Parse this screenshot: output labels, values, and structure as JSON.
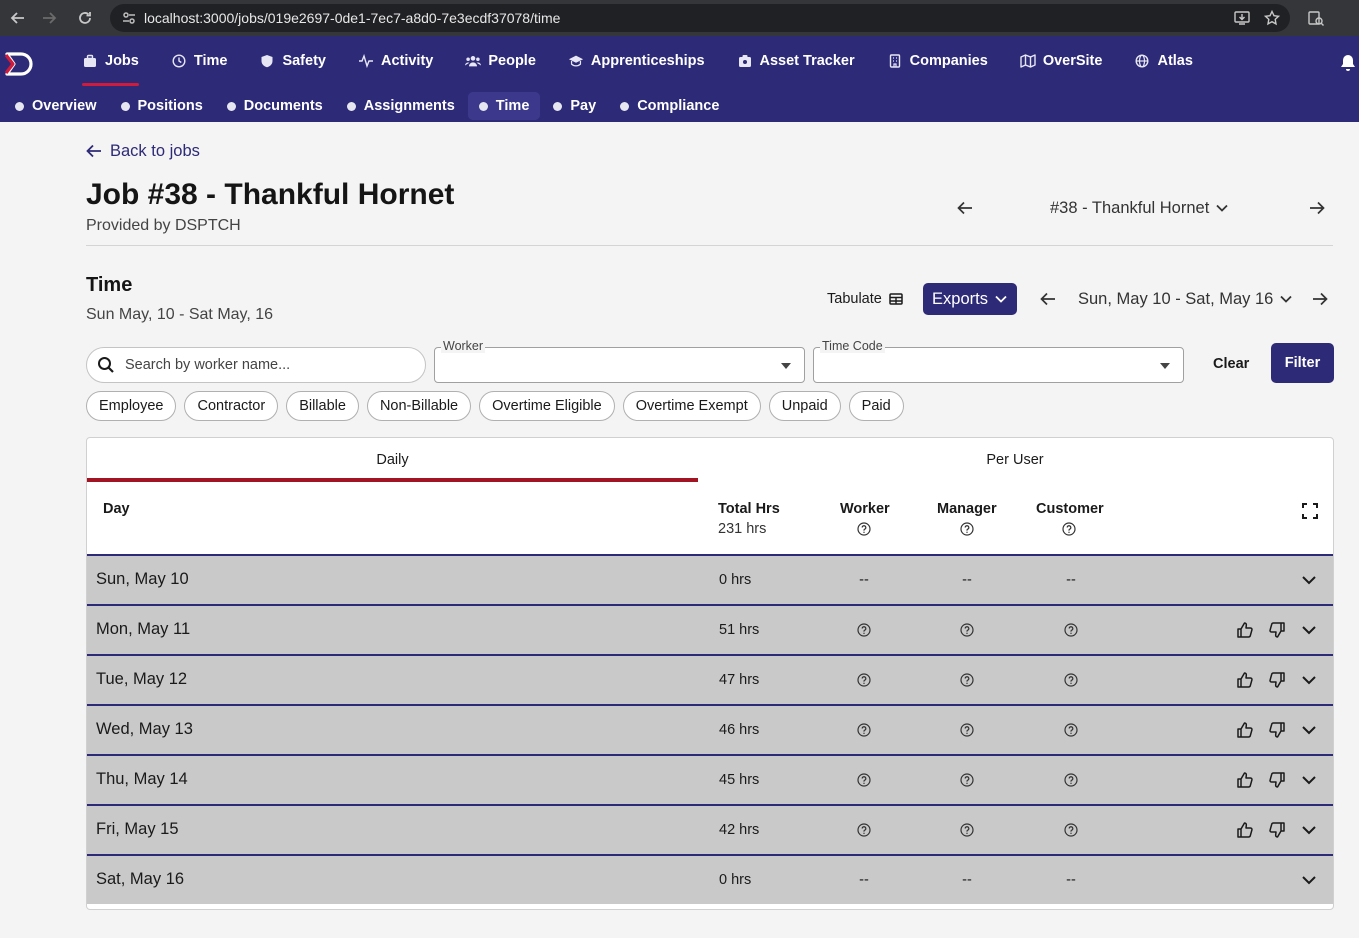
{
  "browser": {
    "url": "localhost:3000/jobs/019e2697-0de1-7ec7-a8d0-7e3ecdf37078/time"
  },
  "main_nav": [
    {
      "label": "Jobs",
      "icon": "briefcase-icon",
      "active": true
    },
    {
      "label": "Time",
      "icon": "clock-icon",
      "active": false
    },
    {
      "label": "Safety",
      "icon": "shield-icon",
      "active": false
    },
    {
      "label": "Activity",
      "icon": "activity-icon",
      "active": false
    },
    {
      "label": "People",
      "icon": "people-icon",
      "active": false
    },
    {
      "label": "Apprenticeships",
      "icon": "graduation-cap-icon",
      "active": false
    },
    {
      "label": "Asset Tracker",
      "icon": "asset-tag-icon",
      "active": false
    },
    {
      "label": "Companies",
      "icon": "building-icon",
      "active": false
    },
    {
      "label": "OverSite",
      "icon": "map-icon",
      "active": false
    },
    {
      "label": "Atlas",
      "icon": "globe-icon",
      "active": false
    }
  ],
  "sub_nav": [
    {
      "label": "Overview",
      "active": false
    },
    {
      "label": "Positions",
      "active": false
    },
    {
      "label": "Documents",
      "active": false
    },
    {
      "label": "Assignments",
      "active": false
    },
    {
      "label": "Time",
      "active": true
    },
    {
      "label": "Pay",
      "active": false
    },
    {
      "label": "Compliance",
      "active": false
    }
  ],
  "page": {
    "back_label": "Back to jobs",
    "title": "Job #38 - Thankful Hornet",
    "provider": "Provided by DSPTCH",
    "job_selector": "#38 - Thankful Hornet"
  },
  "time_section": {
    "title": "Time",
    "date_range": "Sun May, 10 - Sat May, 16",
    "tabulate_label": "Tabulate",
    "exports_label": "Exports",
    "week_selector": "Sun, May 10 - Sat, May 16"
  },
  "filters": {
    "search_placeholder": "Search by worker name...",
    "worker_label": "Worker",
    "time_code_label": "Time Code",
    "clear_label": "Clear",
    "filter_label": "Filter",
    "chips": [
      "Employee",
      "Contractor",
      "Billable",
      "Non-Billable",
      "Overtime Eligible",
      "Overtime Exempt",
      "Unpaid",
      "Paid"
    ]
  },
  "table": {
    "tabs": [
      "Daily",
      "Per User"
    ],
    "active_tab": "Daily",
    "headers": {
      "day": "Day",
      "total_hrs": "Total Hrs",
      "total_hrs_value": "231 hrs",
      "worker": "Worker",
      "manager": "Manager",
      "customer": "Customer"
    },
    "rows": [
      {
        "day": "Sun, May 10",
        "hrs": "0 hrs",
        "worker": "--",
        "manager": "--",
        "customer": "--",
        "actions": false
      },
      {
        "day": "Mon, May 11",
        "hrs": "51 hrs",
        "worker": "?",
        "manager": "?",
        "customer": "?",
        "actions": true
      },
      {
        "day": "Tue, May 12",
        "hrs": "47 hrs",
        "worker": "?",
        "manager": "?",
        "customer": "?",
        "actions": true
      },
      {
        "day": "Wed, May 13",
        "hrs": "46 hrs",
        "worker": "?",
        "manager": "?",
        "customer": "?",
        "actions": true
      },
      {
        "day": "Thu, May 14",
        "hrs": "45 hrs",
        "worker": "?",
        "manager": "?",
        "customer": "?",
        "actions": true
      },
      {
        "day": "Fri, May 15",
        "hrs": "42 hrs",
        "worker": "?",
        "manager": "?",
        "customer": "?",
        "actions": true
      },
      {
        "day": "Sat, May 16",
        "hrs": "0 hrs",
        "worker": "--",
        "manager": "--",
        "customer": "--",
        "actions": false
      }
    ]
  },
  "colors": {
    "brand": "#2d2a77",
    "accent": "#d01c3c",
    "row_bg": "#c9c9c9"
  }
}
